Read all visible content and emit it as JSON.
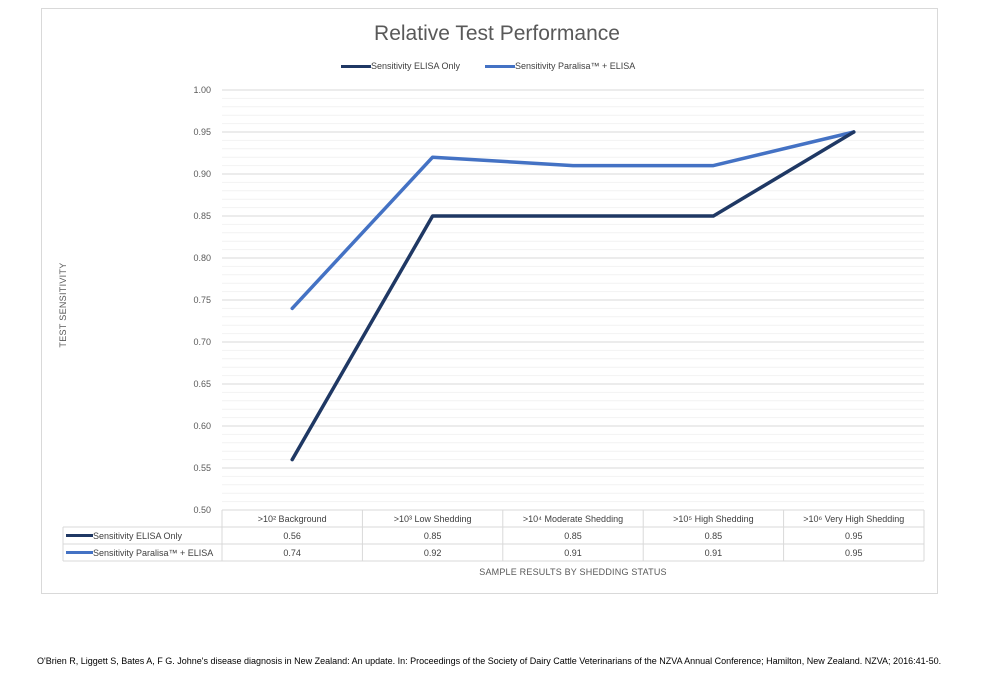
{
  "chart_data": {
    "type": "line",
    "title": "Relative Test Performance",
    "ylabel": "TEST SENSITIVITY",
    "xlabel": "SAMPLE RESULTS BY SHEDDING STATUS",
    "ylim": [
      0.5,
      1.0
    ],
    "yticks": [
      "0.50",
      "0.55",
      "0.60",
      "0.65",
      "0.70",
      "0.75",
      "0.80",
      "0.85",
      "0.90",
      "0.95",
      "1.00"
    ],
    "grid": true,
    "legend_position": "top",
    "categories": [
      ">10² Background",
      ">10³ Low Shedding",
      ">10⁴ Moderate Shedding",
      ">10⁵ High Shedding",
      ">10⁶ Very High Shedding"
    ],
    "series": [
      {
        "name": "Sensitivity ELISA Only",
        "color": "#1f3864",
        "values": [
          0.56,
          0.85,
          0.85,
          0.85,
          0.95
        ],
        "labels": [
          "0.56",
          "0.85",
          "0.85",
          "0.85",
          "0.95"
        ]
      },
      {
        "name": "Sensitivity Paralisa™ + ELISA",
        "color": "#4472c4",
        "values": [
          0.74,
          0.92,
          0.91,
          0.91,
          0.95
        ],
        "labels": [
          "0.74",
          "0.92",
          "0.91",
          "0.91",
          "0.95"
        ]
      }
    ]
  },
  "citation": "O'Brien R, Liggett S, Bates A, F G. Johne's disease diagnosis in New Zealand: An update. In: Proceedings of the Society of Dairy Cattle Veterinarians of the NZVA Annual Conference; Hamilton, New Zealand. NZVA; 2016:41-50."
}
